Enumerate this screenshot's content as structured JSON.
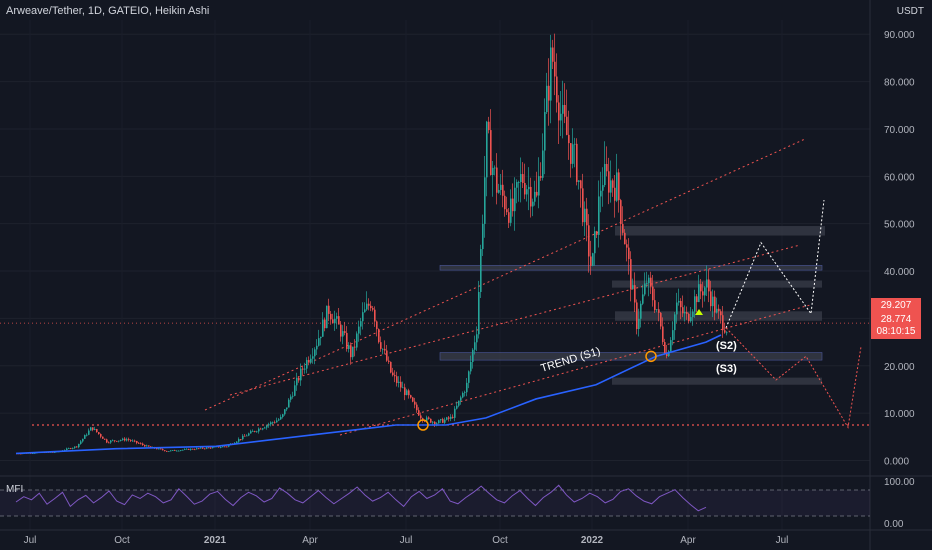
{
  "header": {
    "title": "Arweave/Tether, 1D, GATEIO, Heikin Ashi",
    "currency": "USDT"
  },
  "price_tags": {
    "last": "29.207",
    "ha_close": "28.774",
    "countdown": "08:10:15"
  },
  "annotations": {
    "trend": "TREND (S1)",
    "s2": "(S2)",
    "s3": "(S3)"
  },
  "indicator": {
    "name": "MFI",
    "ticks": [
      "100.00",
      "0.00"
    ]
  },
  "colors": {
    "up": "#26a69a",
    "down": "#ef5350",
    "trend": "#2962ff",
    "channel": "#ef5350",
    "mfi": "#7e57c2"
  },
  "chart_data": {
    "type": "line",
    "title": "Arweave/Tether, 1D, GATEIO, Heikin Ashi",
    "x_ticks": [
      "Jul",
      "Oct",
      "2021",
      "Apr",
      "Jul",
      "Oct",
      "2022",
      "Apr",
      "Jul"
    ],
    "y_ticks": [
      0,
      10,
      20,
      30,
      40,
      50,
      60,
      70,
      80,
      90
    ],
    "y_tick_labels": [
      "0.000",
      "10.000",
      "20.000",
      "30.000",
      "40.000",
      "50.000",
      "60.000",
      "70.000",
      "80.000",
      "90.000"
    ],
    "ylim": [
      -2,
      93
    ],
    "series": [
      {
        "name": "",
        "values": [
          [
            0,
            1.5
          ],
          [
            40,
            1.8
          ],
          [
            60,
            3
          ],
          [
            75,
            7
          ],
          [
            90,
            4
          ],
          [
            110,
            4.5
          ],
          [
            130,
            3
          ],
          [
            150,
            2
          ],
          [
            180,
            2.5
          ],
          [
            210,
            3
          ],
          [
            235,
            6
          ],
          [
            265,
            9
          ],
          [
            285,
            19
          ],
          [
            300,
            25
          ],
          [
            312,
            32
          ],
          [
            325,
            27
          ],
          [
            335,
            22
          ],
          [
            345,
            30
          ],
          [
            355,
            34
          ],
          [
            362,
            26
          ],
          [
            375,
            18
          ],
          [
            390,
            14
          ],
          [
            405,
            9
          ],
          [
            420,
            8
          ],
          [
            435,
            9
          ],
          [
            450,
            16
          ],
          [
            460,
            28
          ],
          [
            470,
            68
          ],
          [
            480,
            58
          ],
          [
            495,
            52
          ],
          [
            505,
            60
          ],
          [
            520,
            55
          ],
          [
            535,
            86
          ],
          [
            545,
            72
          ],
          [
            560,
            62
          ],
          [
            575,
            40
          ],
          [
            585,
            60
          ],
          [
            600,
            58
          ],
          [
            610,
            44
          ],
          [
            620,
            29
          ],
          [
            630,
            38
          ],
          [
            640,
            32
          ],
          [
            650,
            22
          ],
          [
            660,
            33
          ],
          [
            670,
            30
          ],
          [
            680,
            35
          ],
          [
            690,
            37
          ],
          [
            700,
            31
          ],
          [
            710,
            28
          ]
        ]
      },
      {
        "name": "",
        "values": [
          [
            0,
            1.5
          ],
          [
            100,
            2.5
          ],
          [
            200,
            3
          ],
          [
            260,
            4.5
          ],
          [
            300,
            5.5
          ],
          [
            380,
            7.5
          ],
          [
            430,
            7.5
          ],
          [
            470,
            9
          ],
          [
            520,
            13
          ],
          [
            580,
            16
          ],
          [
            640,
            22
          ],
          [
            690,
            25
          ],
          [
            705,
            26.5
          ]
        ]
      }
    ],
    "levels": [
      {
        "label": "",
        "value": 7.5
      },
      {
        "label": "(S2)",
        "value": 22
      },
      {
        "label": "(S3)",
        "value": 17
      },
      {
        "label": "",
        "value": 31.5
      },
      {
        "label": "",
        "value": 38
      },
      {
        "label": "",
        "value": 41
      },
      {
        "label": "",
        "value": 49
      }
    ],
    "projection": [
      [
        710,
        28
      ],
      [
        745,
        46
      ],
      [
        795,
        31
      ],
      [
        808,
        55
      ]
    ],
    "projection_bear": [
      [
        710,
        28
      ],
      [
        760,
        17
      ],
      [
        790,
        22
      ],
      [
        832,
        7
      ],
      [
        845,
        24
      ]
    ]
  },
  "mfi_data": [
    50,
    62,
    55,
    70,
    45,
    58,
    72,
    40,
    55,
    65,
    48,
    60,
    75,
    52,
    44,
    66,
    58,
    70,
    62,
    48,
    55,
    80,
    63,
    45,
    52,
    68,
    74,
    56,
    42,
    60,
    72,
    64,
    50,
    58,
    82,
    70,
    55,
    48,
    62,
    76,
    60,
    46,
    58,
    70,
    84,
    66,
    52,
    60,
    72,
    55,
    40,
    62,
    74,
    58,
    66,
    80,
    52,
    46,
    60,
    72,
    86,
    70,
    55,
    48,
    64,
    76,
    58,
    42,
    60,
    72,
    88,
    66,
    50,
    58,
    70,
    62,
    48,
    56,
    74,
    80,
    64,
    52,
    46,
    62,
    70,
    78,
    60,
    44,
    30,
    38
  ]
}
